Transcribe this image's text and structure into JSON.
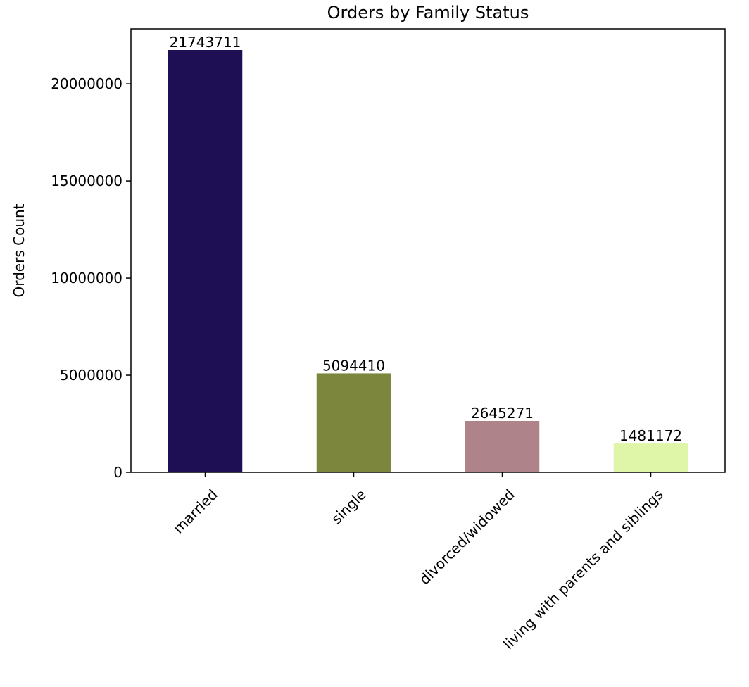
{
  "chart_data": {
    "type": "bar",
    "title": "Orders by Family Status",
    "xlabel": "",
    "ylabel": "Orders Count",
    "categories": [
      "married",
      "single",
      "divorced/widowed",
      "living with parents and siblings"
    ],
    "values": [
      21743711,
      5094410,
      2645271,
      1481172
    ],
    "data_labels": [
      "21743711",
      "5094410",
      "2645271",
      "1481172"
    ],
    "colors": [
      "#1e0e54",
      "#7c873d",
      "#af838a",
      "#dff6a9"
    ],
    "ylim": [
      0,
      22830896
    ],
    "yticks": [
      0,
      5000000,
      10000000,
      15000000,
      20000000
    ],
    "ytick_labels": [
      "0",
      "5000000",
      "10000000",
      "15000000",
      "20000000"
    ],
    "grid": false,
    "legend": "none"
  }
}
